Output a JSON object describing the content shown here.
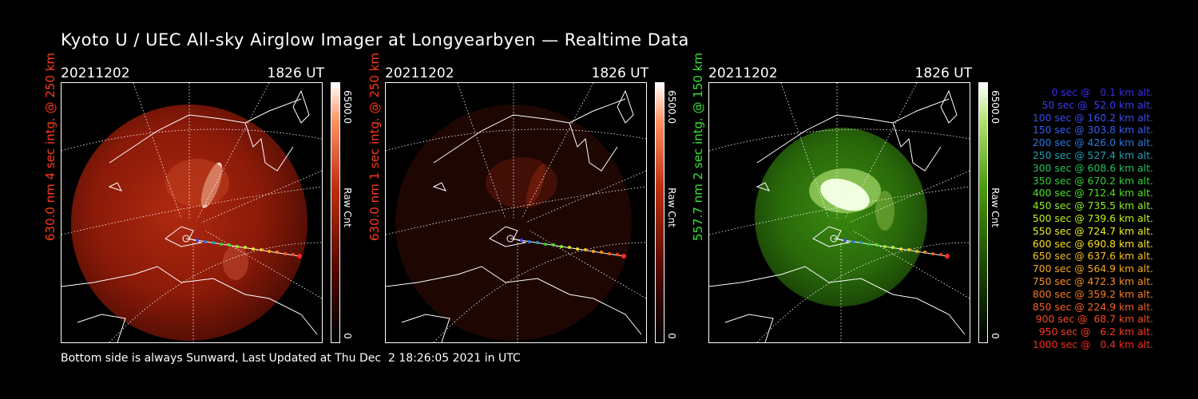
{
  "title": "Kyoto U / UEC All-sky Airglow Imager at Longyearbyen — Realtime Data",
  "panels": [
    {
      "date": "20211202",
      "time": "1826 UT",
      "label": "630.0 nm 4 sec intg. @ 250 km",
      "label_color": "#ff3a1a",
      "cbar_max": "6500.0",
      "cbar_unit": "Raw Cnt",
      "cbar_min": "0"
    },
    {
      "date": "20211202",
      "time": "1826 UT",
      "label": "630.0 nm 1 sec intg. @ 250 km",
      "label_color": "#ff3a1a",
      "cbar_max": "6500.0",
      "cbar_unit": "Raw Cnt",
      "cbar_min": "0"
    },
    {
      "date": "20211202",
      "time": "1826 UT",
      "label": "557.7 nm 2 sec intg. @ 150 km",
      "label_color": "#33e633",
      "cbar_max": "6500.0",
      "cbar_unit": "Raw Cnt",
      "cbar_min": "0"
    }
  ],
  "legend": [
    {
      "text": "0 sec @   0.1 km alt.",
      "color": "#3a2cf0"
    },
    {
      "text": "50 sec @  52.0 km alt.",
      "color": "#3a3cf0"
    },
    {
      "text": "100 sec @ 160.2 km alt.",
      "color": "#3a4cf0"
    },
    {
      "text": "150 sec @ 303.8 km alt.",
      "color": "#3a5ef0"
    },
    {
      "text": "200 sec @ 426.0 km alt.",
      "color": "#2a7ae0"
    },
    {
      "text": "250 sec @ 527.4 km alt.",
      "color": "#20a0b0"
    },
    {
      "text": "300 sec @ 608.6 km alt.",
      "color": "#20c060"
    },
    {
      "text": "350 sec @ 670.2 km alt.",
      "color": "#30d030"
    },
    {
      "text": "400 sec @ 712.4 km alt.",
      "color": "#50e020"
    },
    {
      "text": "450 sec @ 735.5 km alt.",
      "color": "#90f020"
    },
    {
      "text": "500 sec @ 739.6 km alt.",
      "color": "#c0f020"
    },
    {
      "text": "550 sec @ 724.7 km alt.",
      "color": "#e8f020"
    },
    {
      "text": "600 sec @ 690.8 km alt.",
      "color": "#f8e020"
    },
    {
      "text": "650 sec @ 637.6 km alt.",
      "color": "#f8c020"
    },
    {
      "text": "700 sec @ 564.9 km alt.",
      "color": "#f8a820"
    },
    {
      "text": "750 sec @ 472.3 km alt.",
      "color": "#f89020"
    },
    {
      "text": "800 sec @ 359.2 km alt.",
      "color": "#f87a20"
    },
    {
      "text": "850 sec @ 224.9 km alt.",
      "color": "#f86020"
    },
    {
      "text": "900 sec @  68.7 km alt.",
      "color": "#f84a20"
    },
    {
      "text": "950 sec @   6.2 km alt.",
      "color": "#f83a20"
    },
    {
      "text": "1000 sec @   0.4 km alt.",
      "color": "#f82a20"
    }
  ],
  "footer": "Bottom side is always Sunward, Last Updated at Thu Dec  2 18:26:05 2021 in UTC"
}
